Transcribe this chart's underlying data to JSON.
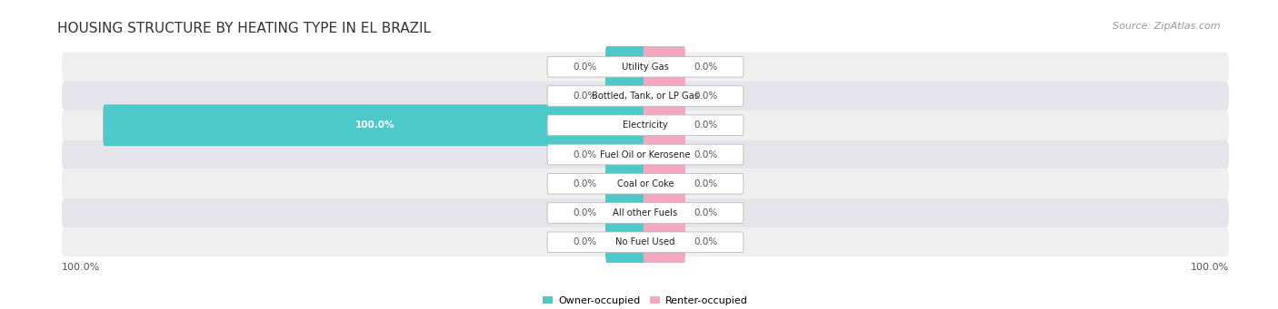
{
  "title": "HOUSING STRUCTURE BY HEATING TYPE IN EL BRAZIL",
  "source": "Source: ZipAtlas.com",
  "categories": [
    "Utility Gas",
    "Bottled, Tank, or LP Gas",
    "Electricity",
    "Fuel Oil or Kerosene",
    "Coal or Coke",
    "All other Fuels",
    "No Fuel Used"
  ],
  "owner_values": [
    0.0,
    0.0,
    100.0,
    0.0,
    0.0,
    0.0,
    0.0
  ],
  "renter_values": [
    0.0,
    0.0,
    0.0,
    0.0,
    0.0,
    0.0,
    0.0
  ],
  "owner_color": "#4EC9C9",
  "renter_color": "#F4A7C0",
  "row_bg_light": "#EFEFEF",
  "row_bg_dark": "#E4E4EA",
  "owner_label": "Owner-occupied",
  "renter_label": "Renter-occupied",
  "axis_left_label": "100.0%",
  "axis_right_label": "100.0%",
  "title_fontsize": 11,
  "source_fontsize": 8,
  "bar_max": 100.0,
  "figsize": [
    14.06,
    3.41
  ],
  "stub_size": 7.0
}
